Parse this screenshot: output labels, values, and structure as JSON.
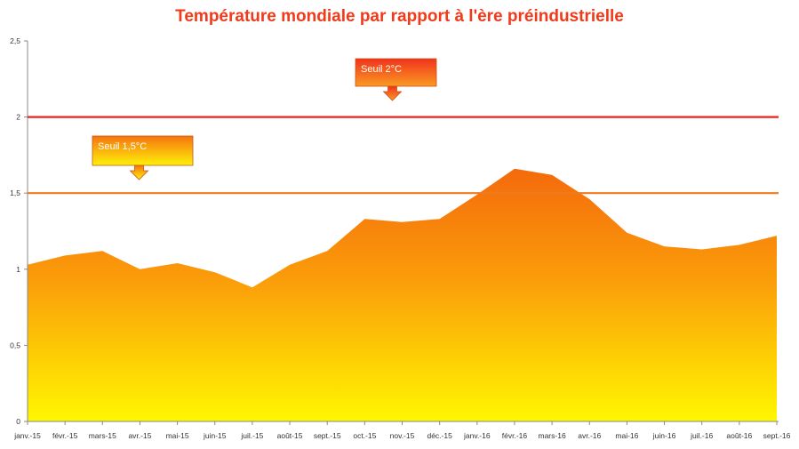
{
  "chart_data": {
    "type": "area",
    "title": "Température mondiale par rapport à l'ère préindustrielle",
    "xlabel": "",
    "ylabel": "",
    "categories": [
      "janv.-15",
      "févr.-15",
      "mars-15",
      "avr.-15",
      "mai-15",
      "juin-15",
      "juil.-15",
      "août-15",
      "sept.-15",
      "oct.-15",
      "nov.-15",
      "déc.-15",
      "janv.-16",
      "févr.-16",
      "mars-16",
      "avr.-16",
      "mai-16",
      "juin-16",
      "juil.-16",
      "août-16",
      "sept.-16"
    ],
    "values": [
      1.03,
      1.09,
      1.12,
      1.0,
      1.04,
      0.98,
      0.88,
      1.03,
      1.12,
      1.33,
      1.31,
      1.33,
      1.49,
      1.66,
      1.62,
      1.46,
      1.24,
      1.15,
      1.13,
      1.16,
      1.22
    ],
    "ylim": [
      0,
      2.5
    ],
    "yticks": [
      "0",
      "0,5",
      "1",
      "1,5",
      "2",
      "2,5"
    ],
    "grid": false,
    "thresholds": [
      {
        "label": "Seuil 1,5°C",
        "value": 1.5,
        "color": "#f07a1e"
      },
      {
        "label": "Seuil 2°C",
        "value": 2.0,
        "color": "#e8231b"
      }
    ],
    "colors": {
      "fill_top": "#f46a0c",
      "fill_bottom": "#fff700",
      "title": "#f23a1a"
    }
  }
}
